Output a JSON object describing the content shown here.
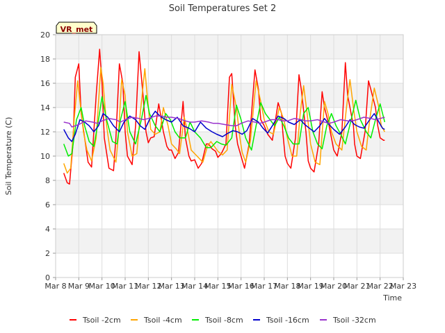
{
  "chart_data": {
    "type": "line",
    "title": "Soil Temperatures Set 2",
    "xlabel": "Time",
    "ylabel": "Soil Temperature (C)",
    "ylim": [
      0,
      20
    ],
    "yticks": [
      0,
      2,
      4,
      6,
      8,
      10,
      12,
      14,
      16,
      18,
      20
    ],
    "xlim": [
      8,
      23
    ],
    "xticks": [
      {
        "x": 8,
        "label": "Mar 8"
      },
      {
        "x": 9,
        "label": "Mar 9"
      },
      {
        "x": 10,
        "label": "Mar 10"
      },
      {
        "x": 11,
        "label": "Mar 11"
      },
      {
        "x": 12,
        "label": "Mar 12"
      },
      {
        "x": 13,
        "label": "Mar 13"
      },
      {
        "x": 14,
        "label": "Mar 14"
      },
      {
        "x": 15,
        "label": "Mar 15"
      },
      {
        "x": 16,
        "label": "Mar 16"
      },
      {
        "x": 17,
        "label": "Mar 17"
      },
      {
        "x": 18,
        "label": "Mar 18"
      },
      {
        "x": 19,
        "label": "Mar 19"
      },
      {
        "x": 20,
        "label": "Mar 20"
      },
      {
        "x": 21,
        "label": "Mar 21"
      },
      {
        "x": 22,
        "label": "Mar 22"
      },
      {
        "x": 23,
        "label": "Mar 23"
      }
    ],
    "grid": true,
    "band_background": true,
    "legend_position": "bottom",
    "annotation": {
      "text": "VR_met"
    },
    "series": [
      {
        "name": "Tsoil -2cm",
        "color": "#ff0000",
        "x": [
          8.35,
          8.5,
          8.6,
          8.75,
          8.85,
          9.0,
          9.1,
          9.25,
          9.4,
          9.55,
          9.75,
          9.9,
          10.0,
          10.1,
          10.3,
          10.5,
          10.6,
          10.75,
          10.9,
          11.0,
          11.1,
          11.3,
          11.45,
          11.6,
          11.75,
          11.9,
          12.0,
          12.1,
          12.25,
          12.45,
          12.65,
          12.8,
          12.9,
          13.0,
          13.15,
          13.3,
          13.5,
          13.6,
          13.75,
          13.85,
          14.0,
          14.15,
          14.3,
          14.5,
          14.6,
          14.75,
          14.9,
          15.0,
          15.15,
          15.35,
          15.5,
          15.6,
          15.75,
          15.85,
          16.0,
          16.15,
          16.35,
          16.6,
          16.75,
          16.85,
          17.0,
          17.15,
          17.35,
          17.6,
          17.75,
          17.8,
          17.9,
          18.0,
          18.15,
          18.35,
          18.5,
          18.6,
          18.8,
          18.9,
          19.0,
          19.15,
          19.35,
          19.5,
          19.6,
          19.8,
          19.9,
          20.0,
          20.15,
          20.35,
          20.5,
          20.6,
          20.85,
          20.9,
          21.0,
          21.15,
          21.35,
          21.5,
          21.6,
          21.8,
          21.9,
          22.0,
          22.15,
          22.2
        ],
        "values": [
          8.6,
          7.8,
          7.7,
          11.0,
          16.5,
          17.6,
          13.5,
          11.5,
          9.5,
          9.1,
          15.0,
          18.8,
          16.0,
          11.5,
          9.0,
          8.8,
          11.5,
          17.6,
          16.0,
          12.0,
          10.0,
          9.3,
          12.5,
          18.6,
          15.5,
          12.0,
          11.1,
          11.5,
          11.6,
          14.3,
          12.0,
          10.8,
          10.5,
          10.5,
          9.8,
          10.3,
          14.5,
          11.5,
          10.0,
          9.6,
          9.7,
          9.0,
          9.4,
          11.0,
          11.0,
          10.6,
          10.4,
          9.9,
          10.2,
          11.0,
          16.5,
          16.8,
          12.5,
          11.0,
          10.0,
          9.0,
          11.0,
          17.1,
          15.5,
          13.0,
          12.5,
          11.8,
          11.3,
          14.4,
          13.5,
          12.0,
          10.0,
          9.4,
          9.0,
          11.5,
          16.7,
          15.5,
          12.0,
          9.6,
          9.0,
          8.7,
          11.0,
          15.3,
          14.0,
          12.5,
          11.5,
          10.5,
          10.0,
          12.0,
          17.7,
          15.0,
          12.5,
          11.0,
          10.0,
          9.8,
          12.0,
          16.2,
          15.5,
          14.0,
          12.5,
          11.5,
          11.3,
          11.3
        ]
      },
      {
        "name": "Tsoil -4cm",
        "color": "#ffa500",
        "x": [
          8.35,
          8.5,
          8.65,
          8.8,
          8.95,
          9.05,
          9.2,
          9.35,
          9.55,
          9.75,
          9.95,
          10.05,
          10.2,
          10.35,
          10.6,
          10.7,
          10.85,
          11.0,
          11.1,
          11.3,
          11.5,
          11.65,
          11.85,
          11.95,
          12.1,
          12.3,
          12.5,
          12.65,
          12.85,
          13.0,
          13.2,
          13.35,
          13.55,
          13.7,
          13.85,
          14.0,
          14.2,
          14.35,
          14.55,
          14.7,
          14.85,
          15.0,
          15.2,
          15.4,
          15.6,
          15.8,
          15.95,
          16.05,
          16.2,
          16.4,
          16.65,
          16.85,
          17.0,
          17.2,
          17.4,
          17.65,
          17.85,
          18.0,
          18.2,
          18.4,
          18.55,
          18.7,
          18.85,
          19.0,
          19.2,
          19.4,
          19.6,
          19.75,
          19.9,
          20.1,
          20.35,
          20.55,
          20.7,
          20.85,
          21.0,
          21.2,
          21.4,
          21.55,
          21.75,
          21.95,
          22.05,
          22.2
        ],
        "values": [
          9.4,
          8.6,
          9.0,
          13.0,
          16.2,
          14.5,
          12.0,
          10.5,
          9.6,
          11.5,
          17.3,
          16.0,
          12.5,
          10.5,
          9.5,
          11.5,
          16.3,
          15.0,
          12.0,
          10.0,
          10.2,
          13.5,
          17.2,
          15.0,
          12.2,
          11.8,
          12.0,
          14.0,
          12.5,
          11.0,
          10.6,
          10.2,
          13.2,
          12.0,
          10.5,
          10.2,
          9.8,
          9.5,
          10.8,
          11.2,
          10.8,
          10.4,
          10.1,
          10.5,
          15.9,
          14.0,
          11.5,
          10.3,
          9.5,
          11.2,
          16.2,
          14.5,
          13.0,
          12.0,
          11.8,
          14.0,
          13.0,
          11.5,
          10.0,
          10.0,
          13.5,
          15.8,
          13.5,
          11.0,
          9.5,
          9.3,
          14.5,
          13.5,
          12.0,
          11.0,
          10.5,
          14.0,
          16.3,
          14.0,
          12.0,
          10.8,
          10.5,
          13.0,
          15.6,
          14.0,
          12.5,
          12.0
        ]
      },
      {
        "name": "Tsoil -8cm",
        "color": "#00ee00",
        "x": [
          8.35,
          8.55,
          8.7,
          8.9,
          9.1,
          9.25,
          9.45,
          9.65,
          9.85,
          10.0,
          10.2,
          10.45,
          10.65,
          10.8,
          11.0,
          11.2,
          11.45,
          11.7,
          11.9,
          12.05,
          12.3,
          12.5,
          12.75,
          12.95,
          13.15,
          13.35,
          13.6,
          13.8,
          14.0,
          14.25,
          14.5,
          14.7,
          14.95,
          15.15,
          15.35,
          15.6,
          15.8,
          16.0,
          16.2,
          16.45,
          16.65,
          16.85,
          17.05,
          17.25,
          17.45,
          17.65,
          17.85,
          18.05,
          18.25,
          18.5,
          18.7,
          18.9,
          19.1,
          19.3,
          19.5,
          19.7,
          19.9,
          20.1,
          20.3,
          20.5,
          20.75,
          20.95,
          21.15,
          21.4,
          21.6,
          21.8,
          22.0,
          22.2
        ],
        "values": [
          11.0,
          10.0,
          10.2,
          13.0,
          14.0,
          12.5,
          11.2,
          10.8,
          13.0,
          14.9,
          13.0,
          11.2,
          11.0,
          13.0,
          14.5,
          12.0,
          11.0,
          13.0,
          15.0,
          13.5,
          12.5,
          12.0,
          13.5,
          13.0,
          12.0,
          11.5,
          11.5,
          12.8,
          12.0,
          11.5,
          10.7,
          10.7,
          11.2,
          11.0,
          10.9,
          11.5,
          14.2,
          13.0,
          11.5,
          10.5,
          12.5,
          14.4,
          13.5,
          13.0,
          12.5,
          13.2,
          12.5,
          11.5,
          11.0,
          11.0,
          13.5,
          14.0,
          12.0,
          11.0,
          10.6,
          12.5,
          13.5,
          12.5,
          11.8,
          11.0,
          13.0,
          14.6,
          13.0,
          12.0,
          11.5,
          13.0,
          14.3,
          12.8
        ]
      },
      {
        "name": "Tsoil -16cm",
        "color": "#0000cd",
        "x": [
          8.35,
          8.55,
          8.7,
          8.85,
          9.05,
          9.25,
          9.45,
          9.65,
          9.85,
          10.05,
          10.25,
          10.5,
          10.75,
          10.95,
          11.2,
          11.45,
          11.65,
          11.85,
          12.05,
          12.3,
          12.5,
          12.75,
          13.0,
          13.25,
          13.5,
          13.75,
          14.0,
          14.25,
          14.5,
          14.75,
          14.95,
          15.2,
          15.45,
          15.65,
          15.85,
          16.05,
          16.25,
          16.5,
          16.75,
          16.95,
          17.15,
          17.35,
          17.6,
          17.85,
          18.05,
          18.3,
          18.55,
          18.75,
          18.95,
          19.15,
          19.4,
          19.6,
          19.8,
          20.0,
          20.25,
          20.5,
          20.7,
          20.9,
          21.1,
          21.3,
          21.55,
          21.75,
          21.95,
          22.1,
          22.2
        ],
        "values": [
          12.2,
          11.5,
          11.2,
          11.8,
          13.0,
          12.8,
          12.5,
          12.0,
          12.5,
          13.5,
          13.2,
          12.5,
          12.0,
          12.8,
          13.3,
          13.0,
          12.5,
          12.2,
          13.0,
          13.7,
          13.3,
          13.0,
          12.8,
          13.2,
          12.5,
          12.3,
          12.0,
          12.8,
          12.3,
          12.0,
          11.8,
          11.6,
          11.9,
          12.1,
          12.0,
          11.8,
          12.1,
          13.1,
          12.8,
          12.3,
          11.9,
          12.5,
          13.3,
          13.1,
          12.8,
          12.6,
          13.0,
          12.6,
          12.3,
          12.0,
          12.5,
          13.1,
          12.6,
          12.2,
          11.8,
          12.4,
          13.0,
          12.6,
          12.4,
          12.3,
          13.0,
          13.5,
          12.8,
          12.3,
          12.2
        ]
      },
      {
        "name": "Tsoil -32cm",
        "color": "#9932cc",
        "x": [
          8.35,
          8.6,
          8.7,
          9.0,
          9.3,
          9.6,
          9.8,
          10.0,
          10.3,
          10.6,
          10.8,
          11.0,
          11.3,
          11.6,
          11.8,
          12.0,
          12.3,
          12.6,
          12.8,
          13.0,
          13.3,
          13.6,
          13.8,
          14.0,
          14.3,
          14.6,
          14.8,
          15.0,
          15.3,
          15.6,
          15.8,
          16.0,
          16.3,
          16.6,
          16.8,
          17.0,
          17.3,
          17.6,
          17.8,
          18.0,
          18.3,
          18.6,
          18.8,
          19.0,
          19.3,
          19.6,
          19.8,
          20.0,
          20.3,
          20.6,
          20.8,
          21.0,
          21.3,
          21.6,
          21.8,
          22.0,
          22.2
        ],
        "values": [
          12.8,
          12.7,
          12.4,
          12.6,
          12.9,
          12.8,
          12.7,
          12.9,
          13.1,
          13.0,
          12.8,
          13.0,
          13.2,
          13.1,
          13.0,
          13.1,
          13.3,
          13.3,
          13.2,
          13.2,
          13.1,
          12.9,
          12.8,
          12.8,
          12.9,
          12.8,
          12.7,
          12.7,
          12.6,
          12.5,
          12.5,
          12.7,
          12.9,
          12.8,
          12.7,
          12.8,
          13.0,
          13.0,
          12.9,
          12.9,
          13.1,
          13.0,
          12.9,
          12.9,
          13.0,
          12.8,
          12.7,
          12.8,
          13.0,
          12.9,
          12.9,
          13.0,
          13.2,
          13.1,
          13.0,
          13.1,
          13.2
        ]
      }
    ]
  }
}
